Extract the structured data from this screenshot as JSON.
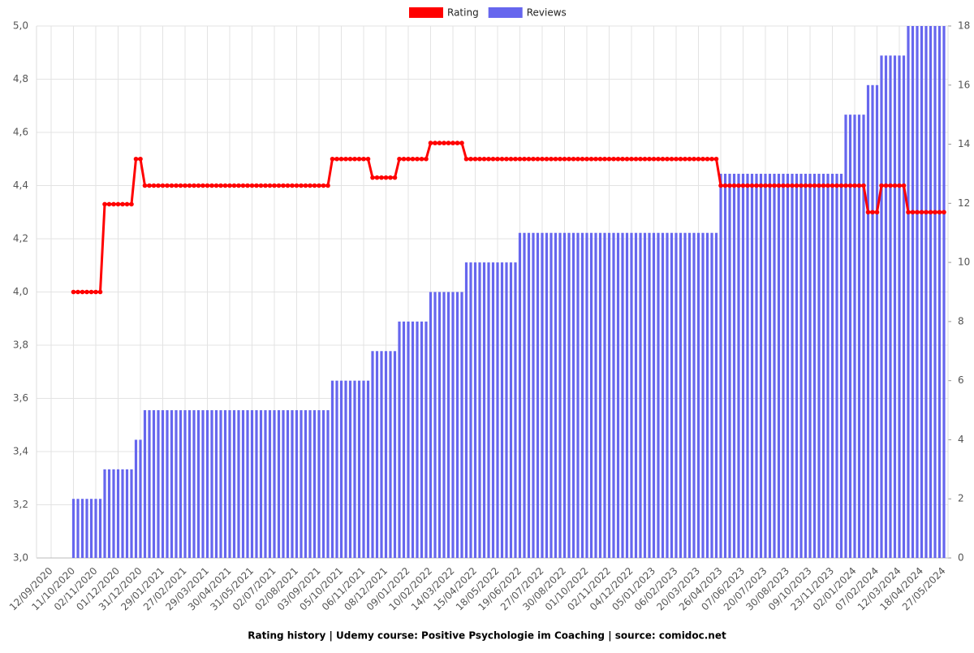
{
  "chart_data": {
    "type": "bar-line",
    "title": "Rating history | Udemy course: Positive Psychologie im Coaching | source: comidoc.net",
    "categories": [
      null,
      null,
      null,
      "12/09/2020",
      null,
      null,
      null,
      null,
      "11/10/2020",
      null,
      null,
      null,
      null,
      "02/11/2020",
      null,
      null,
      null,
      null,
      "01/12/2020",
      null,
      null,
      null,
      null,
      "31/12/2020",
      null,
      null,
      null,
      null,
      "29/01/2021",
      null,
      null,
      null,
      null,
      "27/02/2021",
      null,
      null,
      null,
      null,
      "29/03/2021",
      null,
      null,
      null,
      null,
      "30/04/2021",
      null,
      null,
      null,
      null,
      "31/05/2021",
      null,
      null,
      null,
      null,
      "02/07/2021",
      null,
      null,
      null,
      null,
      "02/08/2021",
      null,
      null,
      null,
      null,
      "03/09/2021",
      null,
      null,
      null,
      null,
      "05/10/2021",
      null,
      null,
      null,
      null,
      "06/11/2021",
      null,
      null,
      null,
      null,
      "08/12/2021",
      null,
      null,
      null,
      null,
      "09/01/2022",
      null,
      null,
      null,
      null,
      "10/02/2022",
      null,
      null,
      null,
      null,
      "14/03/2022",
      null,
      null,
      null,
      null,
      "15/04/2022",
      null,
      null,
      null,
      null,
      "18/05/2022",
      null,
      null,
      null,
      null,
      "19/06/2022",
      null,
      null,
      null,
      null,
      "27/07/2022",
      null,
      null,
      null,
      null,
      "30/08/2022",
      null,
      null,
      null,
      null,
      "01/10/2022",
      null,
      null,
      null,
      null,
      "02/11/2022",
      null,
      null,
      null,
      null,
      "04/12/2022",
      null,
      null,
      null,
      null,
      "05/01/2023",
      null,
      null,
      null,
      null,
      "06/02/2023",
      null,
      null,
      null,
      null,
      "20/03/2023",
      null,
      null,
      null,
      null,
      "26/04/2023",
      null,
      null,
      null,
      null,
      "07/06/2023",
      null,
      null,
      null,
      null,
      "20/07/2023",
      null,
      null,
      null,
      null,
      "30/08/2023",
      null,
      null,
      null,
      null,
      "09/10/2023",
      null,
      null,
      null,
      null,
      "23/11/2023",
      null,
      null,
      null,
      null,
      "02/01/2024",
      null,
      null,
      null,
      null,
      "07/02/2024",
      null,
      null,
      null,
      null,
      "12/03/2024",
      null,
      null,
      null,
      null,
      "18/04/2024",
      null,
      null,
      null,
      null,
      "27/05/2024"
    ],
    "series": [
      {
        "name": "Rating",
        "color": "#ff0000",
        "axis": "y",
        "values": [
          null,
          null,
          null,
          null,
          null,
          null,
          null,
          null,
          4,
          4,
          4,
          4,
          4,
          4,
          4,
          4.33,
          4.33,
          4.33,
          4.33,
          4.33,
          4.33,
          4.33,
          4.5,
          4.5,
          4.4,
          4.4,
          4.4,
          4.4,
          4.4,
          4.4,
          4.4,
          4.4,
          4.4,
          4.4,
          4.4,
          4.4,
          4.4,
          4.4,
          4.4,
          4.4,
          4.4,
          4.4,
          4.4,
          4.4,
          4.4,
          4.4,
          4.4,
          4.4,
          4.4,
          4.4,
          4.4,
          4.4,
          4.4,
          4.4,
          4.4,
          4.4,
          4.4,
          4.4,
          4.4,
          4.4,
          4.4,
          4.4,
          4.4,
          4.4,
          4.4,
          4.4,
          4.5,
          4.5,
          4.5,
          4.5,
          4.5,
          4.5,
          4.5,
          4.5,
          4.5,
          4.43,
          4.43,
          4.43,
          4.43,
          4.43,
          4.43,
          4.5,
          4.5,
          4.5,
          4.5,
          4.5,
          4.5,
          4.5,
          4.56,
          4.56,
          4.56,
          4.56,
          4.56,
          4.56,
          4.56,
          4.56,
          4.5,
          4.5,
          4.5,
          4.5,
          4.5,
          4.5,
          4.5,
          4.5,
          4.5,
          4.5,
          4.5,
          4.5,
          4.5,
          4.5,
          4.5,
          4.5,
          4.5,
          4.5,
          4.5,
          4.5,
          4.5,
          4.5,
          4.5,
          4.5,
          4.5,
          4.5,
          4.5,
          4.5,
          4.5,
          4.5,
          4.5,
          4.5,
          4.5,
          4.5,
          4.5,
          4.5,
          4.5,
          4.5,
          4.5,
          4.5,
          4.5,
          4.5,
          4.5,
          4.5,
          4.5,
          4.5,
          4.5,
          4.5,
          4.5,
          4.5,
          4.5,
          4.5,
          4.5,
          4.5,
          4.5,
          4.5,
          4.5,
          4.4,
          4.4,
          4.4,
          4.4,
          4.4,
          4.4,
          4.4,
          4.4,
          4.4,
          4.4,
          4.4,
          4.4,
          4.4,
          4.4,
          4.4,
          4.4,
          4.4,
          4.4,
          4.4,
          4.4,
          4.4,
          4.4,
          4.4,
          4.4,
          4.4,
          4.4,
          4.4,
          4.4,
          4.4,
          4.4,
          4.4,
          4.4,
          4.4,
          4.3,
          4.3,
          4.3,
          4.4,
          4.4,
          4.4,
          4.4,
          4.4,
          4.4,
          4.3,
          4.3,
          4.3,
          4.3,
          4.3,
          4.3,
          4.3,
          4.3,
          4.3
        ]
      },
      {
        "name": "Reviews",
        "color": "#6666ee",
        "axis": "y2",
        "values": [
          null,
          null,
          null,
          null,
          null,
          null,
          null,
          null,
          2,
          2,
          2,
          2,
          2,
          2,
          2,
          3,
          3,
          3,
          3,
          3,
          3,
          3,
          4,
          4,
          5,
          5,
          5,
          5,
          5,
          5,
          5,
          5,
          5,
          5,
          5,
          5,
          5,
          5,
          5,
          5,
          5,
          5,
          5,
          5,
          5,
          5,
          5,
          5,
          5,
          5,
          5,
          5,
          5,
          5,
          5,
          5,
          5,
          5,
          5,
          5,
          5,
          5,
          5,
          5,
          5,
          5,
          6,
          6,
          6,
          6,
          6,
          6,
          6,
          6,
          6,
          7,
          7,
          7,
          7,
          7,
          7,
          8,
          8,
          8,
          8,
          8,
          8,
          8,
          9,
          9,
          9,
          9,
          9,
          9,
          9,
          9,
          10,
          10,
          10,
          10,
          10,
          10,
          10,
          10,
          10,
          10,
          10,
          10,
          11,
          11,
          11,
          11,
          11,
          11,
          11,
          11,
          11,
          11,
          11,
          11,
          11,
          11,
          11,
          11,
          11,
          11,
          11,
          11,
          11,
          11,
          11,
          11,
          11,
          11,
          11,
          11,
          11,
          11,
          11,
          11,
          11,
          11,
          11,
          11,
          11,
          11,
          11,
          11,
          11,
          11,
          11,
          11,
          11,
          13,
          13,
          13,
          13,
          13,
          13,
          13,
          13,
          13,
          13,
          13,
          13,
          13,
          13,
          13,
          13,
          13,
          13,
          13,
          13,
          13,
          13,
          13,
          13,
          13,
          13,
          13,
          13,
          15,
          15,
          15,
          15,
          15,
          16,
          16,
          16,
          17,
          17,
          17,
          17,
          17,
          17,
          18,
          18,
          18,
          18,
          18,
          18,
          18,
          18,
          18
        ]
      }
    ],
    "ylim": [
      3,
      5
    ],
    "yticks": [
      {
        "value": 3,
        "label": "3,0"
      },
      {
        "value": 3.2,
        "label": "3,2"
      },
      {
        "value": 3.4,
        "label": "3,4"
      },
      {
        "value": 3.6,
        "label": "3,6"
      },
      {
        "value": 3.8,
        "label": "3,8"
      },
      {
        "value": 4,
        "label": "4,0"
      },
      {
        "value": 4.2,
        "label": "4,2"
      },
      {
        "value": 4.4,
        "label": "4,4"
      },
      {
        "value": 4.6,
        "label": "4,6"
      },
      {
        "value": 4.8,
        "label": "4,8"
      },
      {
        "value": 5,
        "label": "5,0"
      }
    ],
    "y2lim": [
      0,
      18
    ],
    "y2ticks": [
      0,
      2,
      4,
      6,
      8,
      10,
      12,
      14,
      16,
      18
    ],
    "grid": true,
    "legend": "top"
  }
}
